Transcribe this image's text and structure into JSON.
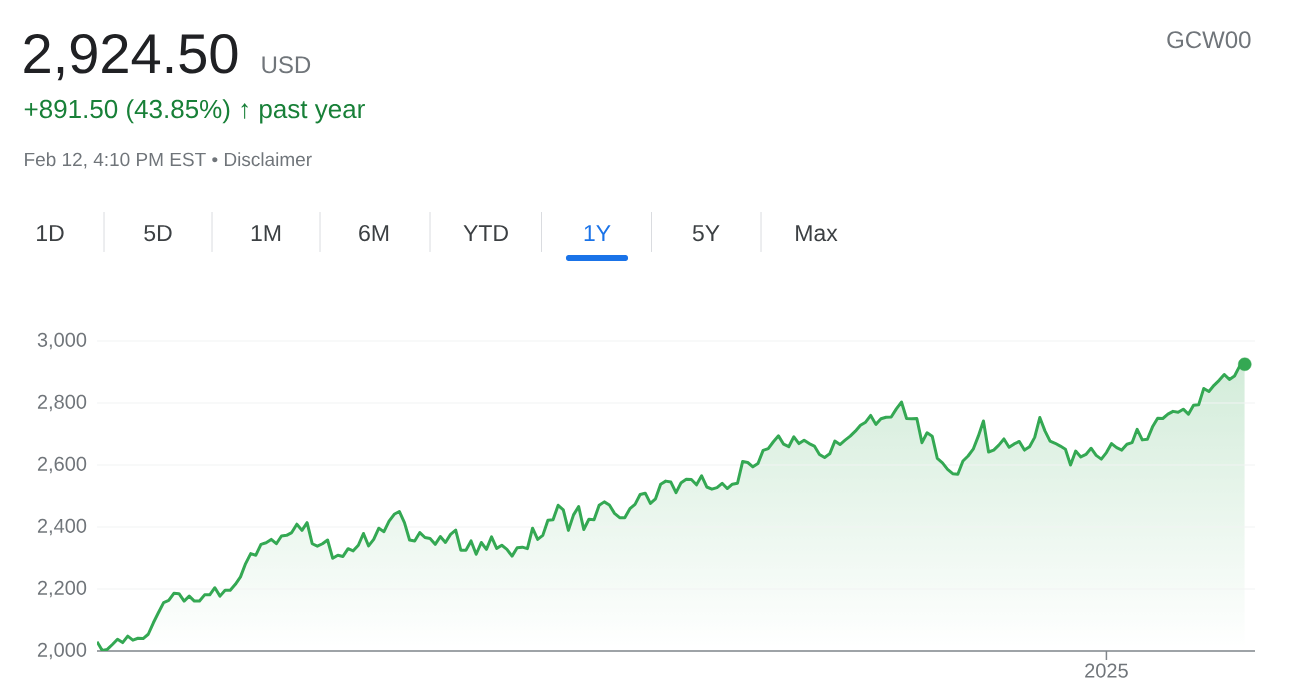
{
  "chart_data": {
    "type": "line",
    "title": "2,924.50",
    "subtitle": "+891.50 (43.85%) ↑ past year",
    "annotations": [
      "USD",
      "Feb 12, 4:10 PM EST • Disclaimer",
      "GCW00",
      "1D",
      "5D",
      "1M",
      "6M",
      "YTD",
      "1Y",
      "5Y",
      "Max"
    ],
    "categories": [
      null,
      null,
      null,
      null,
      null,
      null,
      null,
      null,
      null,
      null,
      null,
      null,
      null,
      null,
      null,
      null,
      null,
      null,
      null,
      null,
      null,
      null,
      null,
      null,
      null,
      null,
      null,
      null,
      null,
      null,
      null,
      null,
      null,
      null,
      null,
      null,
      null,
      null,
      null,
      null,
      null,
      null,
      null,
      null,
      null,
      null,
      null,
      null,
      null,
      null,
      null,
      null,
      null,
      null,
      null,
      null,
      null,
      null,
      null,
      null,
      null,
      null,
      null,
      null,
      null,
      null,
      null,
      null,
      null,
      null,
      null,
      null,
      null,
      null,
      null,
      null,
      null,
      null,
      null,
      null,
      null,
      null,
      null,
      null,
      null,
      null,
      null,
      null,
      null,
      null,
      null,
      null,
      null,
      null,
      null,
      null,
      null,
      null,
      null,
      null,
      null,
      null,
      null,
      null,
      null,
      null,
      null,
      null,
      null,
      null,
      null,
      null,
      null,
      null,
      null,
      null,
      null,
      null,
      null,
      null,
      null,
      null,
      null,
      null,
      null,
      null,
      null,
      null,
      null,
      null,
      null,
      null,
      null,
      null,
      null,
      null,
      null,
      null,
      null,
      null,
      null,
      null,
      null,
      null,
      null,
      null,
      null,
      null,
      null,
      null,
      null,
      null,
      null,
      null,
      null,
      null,
      null,
      null,
      null,
      null,
      null,
      null,
      null,
      null,
      null,
      null,
      null,
      null,
      null,
      null,
      null,
      null,
      null,
      null,
      null,
      null,
      null,
      null,
      null,
      null,
      null,
      null,
      null,
      null,
      null,
      null,
      null,
      null,
      null,
      null,
      null,
      null,
      null,
      null,
      null,
      null,
      null,
      "2025",
      null,
      null,
      null,
      null,
      null,
      null,
      null,
      null,
      null,
      null,
      null,
      null,
      null,
      null,
      null,
      null,
      null,
      null,
      null,
      null,
      null,
      null,
      null,
      null,
      null,
      null,
      null
    ],
    "ylim": [
      2000,
      3000
    ],
    "yticks": [
      {
        "value": 2000,
        "label": "2,000"
      },
      {
        "value": 2200,
        "label": "2,200"
      },
      {
        "value": 2400,
        "label": "2,400"
      },
      {
        "value": 2600,
        "label": "2,600"
      },
      {
        "value": 2800,
        "label": "2,800"
      },
      {
        "value": 3000,
        "label": "3,000"
      }
    ],
    "grid": "y",
    "series": [
      {
        "color": "#34a853",
        "values": [
          2030,
          2002,
          2005,
          2021,
          2038,
          2027,
          2048,
          2035,
          2041,
          2040,
          2054,
          2091,
          2124,
          2156,
          2163,
          2186,
          2185,
          2161,
          2177,
          2161,
          2161,
          2181,
          2181,
          2204,
          2177,
          2196,
          2196,
          2215,
          2239,
          2282,
          2314,
          2309,
          2344,
          2349,
          2360,
          2346,
          2371,
          2373,
          2382,
          2409,
          2389,
          2414,
          2346,
          2338,
          2346,
          2358,
          2299,
          2309,
          2305,
          2330,
          2323,
          2341,
          2379,
          2339,
          2360,
          2396,
          2385,
          2419,
          2441,
          2450,
          2414,
          2358,
          2355,
          2382,
          2366,
          2363,
          2344,
          2369,
          2350,
          2376,
          2390,
          2325,
          2325,
          2355,
          2312,
          2350,
          2328,
          2368,
          2331,
          2341,
          2328,
          2306,
          2333,
          2335,
          2330,
          2396,
          2360,
          2373,
          2422,
          2423,
          2470,
          2455,
          2389,
          2439,
          2466,
          2392,
          2425,
          2423,
          2470,
          2481,
          2471,
          2444,
          2430,
          2430,
          2459,
          2473,
          2505,
          2509,
          2476,
          2491,
          2538,
          2548,
          2545,
          2511,
          2543,
          2554,
          2553,
          2536,
          2565,
          2529,
          2522,
          2527,
          2541,
          2524,
          2538,
          2541,
          2611,
          2608,
          2594,
          2605,
          2647,
          2653,
          2675,
          2694,
          2667,
          2659,
          2691,
          2669,
          2680,
          2669,
          2661,
          2634,
          2624,
          2636,
          2677,
          2666,
          2680,
          2693,
          2709,
          2728,
          2738,
          2760,
          2731,
          2749,
          2754,
          2755,
          2781,
          2803,
          2750,
          2749,
          2750,
          2672,
          2704,
          2693,
          2621,
          2607,
          2586,
          2572,
          2570,
          2613,
          2629,
          2651,
          2693,
          2742,
          2642,
          2648,
          2664,
          2684,
          2657,
          2668,
          2676,
          2648,
          2659,
          2689,
          2753,
          2710,
          2677,
          2670,
          2661,
          2651,
          2600,
          2645,
          2626,
          2634,
          2654,
          2631,
          2619,
          2640,
          2669,
          2656,
          2648,
          2667,
          2672,
          2715,
          2681,
          2683,
          2723,
          2751,
          2750,
          2764,
          2773,
          2770,
          2780,
          2764,
          2793,
          2794,
          2847,
          2837,
          2857,
          2873,
          2892,
          2876,
          2887,
          2919,
          2925
        ]
      },
      {
        "type": "scatter",
        "marker": "circle",
        "color": "#34a853",
        "values": [
          null,
          null,
          null,
          null,
          null,
          null,
          null,
          null,
          null,
          null,
          null,
          null,
          null,
          null,
          null,
          null,
          null,
          null,
          null,
          null,
          null,
          null,
          null,
          null,
          null,
          null,
          null,
          null,
          null,
          null,
          null,
          null,
          null,
          null,
          null,
          null,
          null,
          null,
          null,
          null,
          null,
          null,
          null,
          null,
          null,
          null,
          null,
          null,
          null,
          null,
          null,
          null,
          null,
          null,
          null,
          null,
          null,
          null,
          null,
          null,
          null,
          null,
          null,
          null,
          null,
          null,
          null,
          null,
          null,
          null,
          null,
          null,
          null,
          null,
          null,
          null,
          null,
          null,
          null,
          null,
          null,
          null,
          null,
          null,
          null,
          null,
          null,
          null,
          null,
          null,
          null,
          null,
          null,
          null,
          null,
          null,
          null,
          null,
          null,
          null,
          null,
          null,
          null,
          null,
          null,
          null,
          null,
          null,
          null,
          null,
          null,
          null,
          null,
          null,
          null,
          null,
          null,
          null,
          null,
          null,
          null,
          null,
          null,
          null,
          null,
          null,
          null,
          null,
          null,
          null,
          null,
          null,
          null,
          null,
          null,
          null,
          null,
          null,
          null,
          null,
          null,
          null,
          null,
          null,
          null,
          null,
          null,
          null,
          null,
          null,
          null,
          null,
          null,
          null,
          null,
          null,
          null,
          null,
          null,
          null,
          null,
          null,
          null,
          null,
          null,
          null,
          null,
          null,
          null,
          null,
          null,
          null,
          null,
          null,
          null,
          null,
          null,
          null,
          null,
          null,
          null,
          null,
          null,
          null,
          null,
          null,
          null,
          null,
          null,
          null,
          null,
          null,
          null,
          null,
          null,
          null,
          null,
          null,
          null,
          null,
          null,
          null,
          null,
          null,
          null,
          null,
          null,
          null,
          null,
          null,
          null,
          null,
          null,
          null,
          null,
          null,
          null,
          null,
          null,
          null,
          null,
          null,
          null,
          null,
          2925
        ]
      }
    ]
  }
}
